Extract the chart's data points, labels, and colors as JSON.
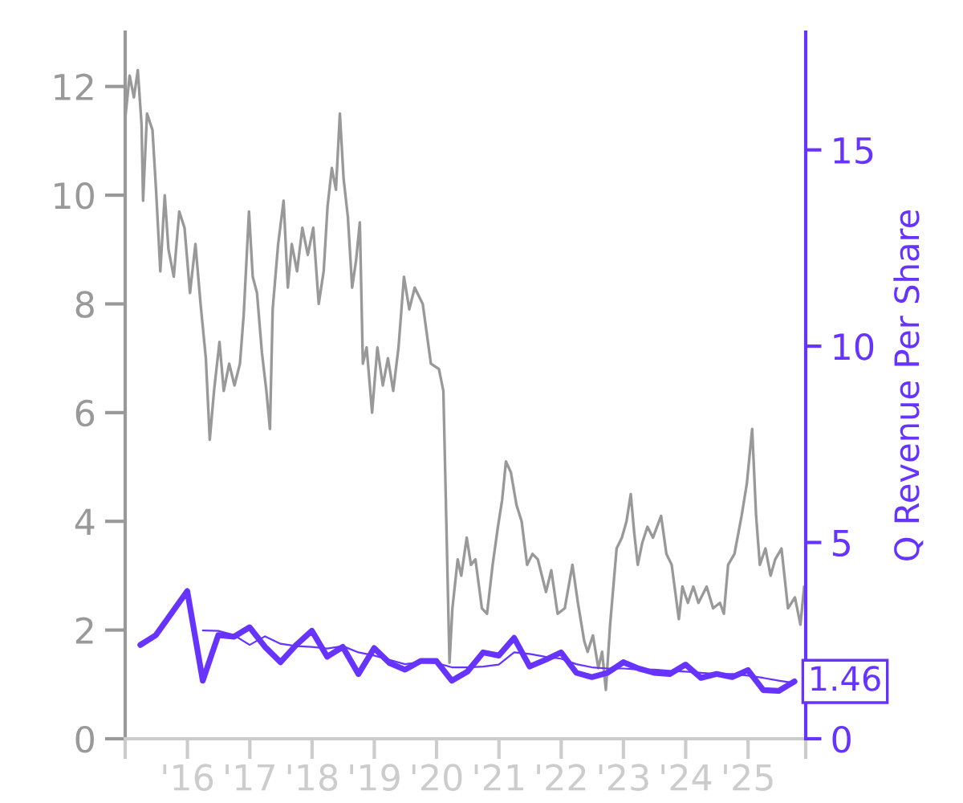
{
  "chart_data": {
    "type": "line",
    "y2label": "Q Revenue Per Share",
    "xlim": [
      "2015-01-01",
      "2025-12-05"
    ],
    "xticks": [
      {
        "value": "2015-01-01",
        "label": null
      },
      {
        "value": "2016-01-01",
        "label": "'16"
      },
      {
        "value": "2017-01-01",
        "label": "'17"
      },
      {
        "value": "2018-01-01",
        "label": "'18"
      },
      {
        "value": "2019-01-01",
        "label": "'19"
      },
      {
        "value": "2020-01-01",
        "label": "'20"
      },
      {
        "value": "2021-01-01",
        "label": "'21"
      },
      {
        "value": "2022-01-01",
        "label": "'22"
      },
      {
        "value": "2023-01-01",
        "label": "'23"
      },
      {
        "value": "2024-01-01",
        "label": "'24"
      },
      {
        "value": "2025-01-01",
        "label": "'25"
      },
      {
        "value": "2025-12-05",
        "label": null
      }
    ],
    "ylim": [
      0,
      13
    ],
    "yticks": [
      0,
      2,
      4,
      6,
      8,
      10,
      12
    ],
    "y2lim": [
      0,
      18
    ],
    "y2ticks": [
      0,
      5,
      10,
      15
    ],
    "series": [
      {
        "color": "#999999",
        "x": [
          "2015-01-04",
          "2015-01-27",
          "2015-02-21",
          "2015-03-16",
          "2015-04-07",
          "2015-04-16",
          "2015-05-09",
          "2015-06-10",
          "2015-07-01",
          "2015-07-26",
          "2015-08-21",
          "2015-09-12",
          "2015-10-13",
          "2015-11-14",
          "2015-12-15",
          "2016-01-16",
          "2016-02-17",
          "2016-03-18",
          "2016-04-18",
          "2016-05-11",
          "2016-06-05",
          "2016-07-07",
          "2016-08-01",
          "2016-09-02",
          "2016-10-03",
          "2016-11-04",
          "2016-11-26",
          "2016-12-27",
          "2017-01-18",
          "2017-02-12",
          "2017-03-13",
          "2017-04-08",
          "2017-04-29",
          "2017-05-15",
          "2017-06-16",
          "2017-07-18",
          "2017-08-12",
          "2017-09-04",
          "2017-10-05",
          "2017-11-05",
          "2017-12-07",
          "2018-01-08",
          "2018-02-09",
          "2018-03-10",
          "2018-04-02",
          "2018-04-27",
          "2018-05-21",
          "2018-06-13",
          "2018-07-05",
          "2018-07-30",
          "2018-08-24",
          "2018-09-16",
          "2018-10-08",
          "2018-10-26",
          "2018-11-17",
          "2018-12-19",
          "2019-01-19",
          "2019-02-20",
          "2019-03-22",
          "2019-04-22",
          "2019-05-23",
          "2019-06-24",
          "2019-07-25",
          "2019-08-26",
          "2019-10-12",
          "2019-11-29",
          "2020-01-15",
          "2020-02-10",
          "2020-03-17",
          "2020-04-03",
          "2020-05-04",
          "2020-05-25",
          "2020-06-26",
          "2020-07-21",
          "2020-08-16",
          "2020-09-23",
          "2020-10-23",
          "2020-11-25",
          "2020-12-26",
          "2021-01-20",
          "2021-02-11",
          "2021-03-12",
          "2021-04-14",
          "2021-05-14",
          "2021-06-15",
          "2021-07-17",
          "2021-08-17",
          "2021-10-04",
          "2021-11-04",
          "2021-12-11",
          "2022-01-22",
          "2022-03-08",
          "2022-04-09",
          "2022-05-16",
          "2022-06-05",
          "2022-07-06",
          "2022-08-07",
          "2022-08-29",
          "2022-09-20",
          "2022-10-15",
          "2022-11-22",
          "2022-12-23",
          "2023-01-19",
          "2023-02-13",
          "2023-03-05",
          "2023-03-26",
          "2023-04-21",
          "2023-05-22",
          "2023-06-23",
          "2023-08-10",
          "2023-09-10",
          "2023-10-11",
          "2023-11-22",
          "2023-12-13",
          "2024-01-14",
          "2024-02-15",
          "2024-03-16",
          "2024-05-03",
          "2024-06-10",
          "2024-07-20",
          "2024-08-12",
          "2024-09-06",
          "2024-10-13",
          "2024-11-24",
          "2024-12-25",
          "2025-01-25",
          "2025-02-17",
          "2025-03-11",
          "2025-04-13",
          "2025-05-13",
          "2025-06-09",
          "2025-07-16",
          "2025-08-23",
          "2025-10-03",
          "2025-11-04",
          "2025-11-26"
        ],
        "values": [
          11.5,
          12.2,
          11.8,
          12.3,
          11.3,
          9.9,
          11.5,
          11.2,
          10.1,
          8.6,
          10.0,
          9.0,
          8.5,
          9.7,
          9.4,
          8.2,
          9.1,
          8.0,
          7.0,
          5.5,
          6.4,
          7.3,
          6.4,
          6.9,
          6.5,
          6.9,
          7.8,
          9.7,
          8.5,
          8.2,
          7.1,
          6.4,
          5.7,
          7.9,
          9.1,
          9.9,
          8.3,
          9.1,
          8.6,
          9.4,
          8.9,
          9.4,
          8.0,
          8.6,
          9.8,
          10.5,
          10.1,
          11.5,
          10.3,
          9.6,
          8.3,
          8.8,
          9.5,
          6.9,
          7.2,
          6.0,
          7.2,
          6.5,
          7.0,
          6.4,
          7.2,
          8.5,
          7.9,
          8.3,
          8.0,
          6.9,
          6.8,
          6.4,
          1.4,
          2.4,
          3.3,
          3.0,
          3.7,
          3.2,
          3.3,
          2.4,
          2.3,
          3.2,
          3.9,
          4.4,
          5.1,
          4.9,
          4.3,
          4.0,
          3.2,
          3.4,
          3.3,
          2.7,
          3.1,
          2.3,
          2.4,
          3.2,
          2.5,
          1.8,
          1.6,
          1.9,
          1.3,
          1.6,
          0.9,
          2.1,
          3.5,
          3.7,
          4.0,
          4.5,
          3.8,
          3.2,
          3.6,
          3.9,
          3.7,
          4.1,
          3.4,
          3.2,
          2.2,
          2.8,
          2.5,
          2.8,
          2.5,
          2.8,
          2.4,
          2.5,
          2.3,
          3.2,
          3.4,
          4.1,
          4.7,
          5.7,
          4.1,
          3.2,
          3.5,
          3.0,
          3.3,
          3.5,
          2.4,
          2.6,
          2.1,
          2.8
        ]
      },
      {
        "axis": "y2",
        "color": "#6633ff",
        "x": [
          "2015-03-31",
          "2015-06-30",
          "2015-09-30",
          "2015-12-31",
          "2016-03-31",
          "2016-06-30",
          "2016-09-30",
          "2016-12-31",
          "2017-03-31",
          "2017-06-30",
          "2017-09-30",
          "2017-12-31",
          "2018-03-31",
          "2018-06-30",
          "2018-09-30",
          "2018-12-31",
          "2019-03-31",
          "2019-06-30",
          "2019-09-30",
          "2019-12-31",
          "2020-03-31",
          "2020-06-30",
          "2020-09-30",
          "2020-12-31",
          "2021-03-31",
          "2021-06-30",
          "2021-09-30",
          "2021-12-31",
          "2022-03-31",
          "2022-06-30",
          "2022-09-30",
          "2022-12-31",
          "2023-03-31",
          "2023-06-30",
          "2023-09-30",
          "2023-12-31",
          "2024-03-31",
          "2024-06-30",
          "2024-09-30",
          "2024-12-31",
          "2025-03-31",
          "2025-06-30",
          "2025-09-30"
        ],
        "values": [
          2.39,
          2.64,
          3.2,
          3.76,
          1.48,
          2.64,
          2.6,
          2.84,
          2.34,
          1.95,
          2.39,
          2.75,
          2.09,
          2.34,
          1.65,
          2.31,
          1.93,
          1.76,
          1.98,
          1.98,
          1.48,
          1.71,
          2.2,
          2.12,
          2.57,
          1.84,
          2.01,
          2.2,
          1.68,
          1.57,
          1.68,
          1.95,
          1.79,
          1.68,
          1.65,
          1.89,
          1.55,
          1.65,
          1.57,
          1.75,
          1.24,
          1.22,
          1.46
        ],
        "value_labels": [
          null,
          null,
          null,
          null,
          null,
          null,
          null,
          null,
          null,
          null,
          null,
          null,
          null,
          null,
          null,
          null,
          null,
          null,
          null,
          null,
          null,
          null,
          null,
          null,
          null,
          null,
          null,
          null,
          null,
          null,
          null,
          null,
          null,
          null,
          null,
          null,
          null,
          null,
          null,
          null,
          null,
          null,
          "1.46"
        ]
      },
      {
        "axis": "y2",
        "color": "#6633ff",
        "x": [
          "2016-03-31",
          "2016-06-30",
          "2016-09-30",
          "2016-12-31",
          "2017-03-31",
          "2017-06-30",
          "2017-09-30",
          "2017-12-31",
          "2018-03-31",
          "2018-06-30",
          "2018-09-30",
          "2018-12-31",
          "2019-03-31",
          "2019-06-30",
          "2019-09-30",
          "2019-12-31",
          "2020-03-31",
          "2020-06-30",
          "2020-09-30",
          "2020-12-31",
          "2021-03-31",
          "2021-06-30",
          "2021-09-30",
          "2021-12-31",
          "2022-03-31",
          "2022-06-30",
          "2022-09-30",
          "2022-12-31",
          "2023-03-31",
          "2023-06-30",
          "2023-09-30",
          "2023-12-31",
          "2024-03-31",
          "2024-06-30",
          "2024-09-30",
          "2024-12-31",
          "2025-03-31",
          "2025-06-30",
          "2025-09-30"
        ],
        "values": [
          2.76,
          2.75,
          2.64,
          2.39,
          2.61,
          2.42,
          2.36,
          2.34,
          2.3,
          2.36,
          2.2,
          2.12,
          2.01,
          1.9,
          1.95,
          1.93,
          1.82,
          1.82,
          1.84,
          1.89,
          2.2,
          2.16,
          2.09,
          2.04,
          1.9,
          1.82,
          1.79,
          1.79,
          1.76,
          1.76,
          1.73,
          1.71,
          1.68,
          1.65,
          1.65,
          1.61,
          1.55,
          1.48,
          1.42
        ]
      }
    ]
  }
}
